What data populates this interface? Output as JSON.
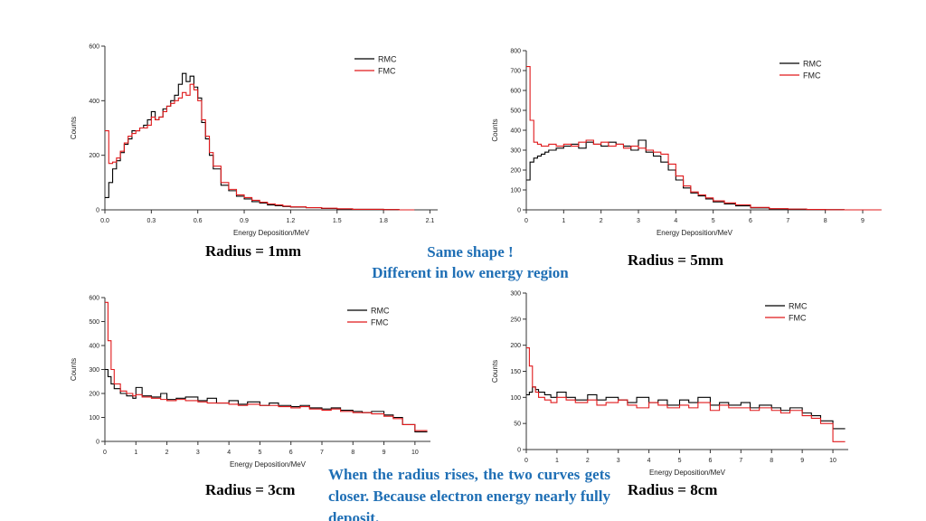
{
  "colors": {
    "rmc": "#000000",
    "fmc": "#e0191b",
    "note": "#1f6fb5"
  },
  "labels": {
    "radius_1mm": "Radius = 1mm",
    "radius_5mm": "Radius = 5mm",
    "radius_3cm": "Radius = 3cm",
    "radius_8cm": "Radius = 8cm"
  },
  "notes": {
    "same_shape_line1": "Same shape !",
    "same_shape_line2": "Different in low energy region",
    "closer": "When the radius rises, the two curves gets closer. Because electron energy nearly fully deposit."
  },
  "chart_data": [
    {
      "type": "line",
      "step": true,
      "xlabel": "Energy Deposition/MeV",
      "ylabel": "Counts",
      "xlim": [
        0,
        2.15
      ],
      "ylim": [
        0,
        600
      ],
      "xticks": [
        0.0,
        0.3,
        0.6,
        0.9,
        1.2,
        1.5,
        1.8,
        2.1
      ],
      "xtick_labels": [
        "0.0",
        "0.3",
        "0.6",
        "0.9",
        "1.2",
        "1.5",
        "1.8",
        "2.1"
      ],
      "yticks": [
        0,
        200,
        400,
        600
      ],
      "ytick_labels": [
        "0",
        "200",
        "400",
        "600"
      ],
      "legend_position": "top-right",
      "x": [
        0.0,
        0.025,
        0.05,
        0.075,
        0.1,
        0.125,
        0.15,
        0.175,
        0.2,
        0.225,
        0.25,
        0.275,
        0.3,
        0.325,
        0.35,
        0.375,
        0.4,
        0.425,
        0.45,
        0.475,
        0.5,
        0.525,
        0.55,
        0.575,
        0.6,
        0.625,
        0.65,
        0.675,
        0.7,
        0.75,
        0.8,
        0.85,
        0.9,
        0.95,
        1.0,
        1.05,
        1.1,
        1.15,
        1.2,
        1.3,
        1.4,
        1.5,
        1.6,
        1.7,
        1.8,
        1.9
      ],
      "series": [
        {
          "name": "RMC",
          "color": "#000000",
          "values": [
            45,
            100,
            150,
            180,
            210,
            240,
            260,
            290,
            290,
            300,
            310,
            330,
            360,
            330,
            340,
            370,
            380,
            400,
            420,
            460,
            500,
            470,
            490,
            450,
            410,
            320,
            260,
            200,
            150,
            90,
            70,
            50,
            40,
            30,
            25,
            18,
            15,
            12,
            10,
            8,
            5,
            3,
            2,
            2,
            1,
            0
          ]
        },
        {
          "name": "FMC",
          "color": "#e0191b",
          "values": [
            290,
            170,
            175,
            190,
            215,
            245,
            270,
            280,
            290,
            300,
            300,
            310,
            340,
            330,
            340,
            360,
            380,
            390,
            400,
            410,
            430,
            420,
            460,
            440,
            400,
            330,
            270,
            210,
            160,
            100,
            75,
            55,
            45,
            35,
            28,
            22,
            18,
            14,
            11,
            8,
            6,
            4,
            2,
            2,
            1,
            0
          ]
        }
      ]
    },
    {
      "type": "line",
      "step": true,
      "xlabel": "Energy Deposition/MeV",
      "ylabel": "Counts",
      "xlim": [
        0,
        9
      ],
      "ylim": [
        0,
        800
      ],
      "xticks": [
        0,
        1,
        2,
        3,
        4,
        5,
        6,
        7,
        8,
        9
      ],
      "xtick_labels": [
        "0",
        "1",
        "2",
        "3",
        "4",
        "5",
        "6",
        "7",
        "8",
        "9"
      ],
      "yticks": [
        0,
        100,
        200,
        300,
        400,
        500,
        600,
        700,
        800
      ],
      "ytick_labels": [
        "0",
        "100",
        "200",
        "300",
        "400",
        "500",
        "600",
        "700",
        "800"
      ],
      "legend_position": "top-right",
      "x": [
        0.0,
        0.1,
        0.2,
        0.3,
        0.4,
        0.5,
        0.6,
        0.8,
        1.0,
        1.2,
        1.4,
        1.6,
        1.8,
        2.0,
        2.2,
        2.4,
        2.6,
        2.8,
        3.0,
        3.2,
        3.4,
        3.6,
        3.8,
        4.0,
        4.2,
        4.4,
        4.6,
        4.8,
        5.0,
        5.3,
        5.6,
        6.0,
        6.5,
        7.0,
        7.5,
        8.0,
        8.5,
        9.0
      ],
      "series": [
        {
          "name": "RMC",
          "color": "#000000",
          "values": [
            150,
            240,
            260,
            270,
            280,
            290,
            300,
            310,
            320,
            330,
            310,
            340,
            330,
            320,
            340,
            330,
            320,
            300,
            350,
            290,
            270,
            240,
            200,
            150,
            110,
            85,
            70,
            55,
            40,
            30,
            20,
            10,
            5,
            3,
            2,
            1,
            0,
            0
          ]
        },
        {
          "name": "FMC",
          "color": "#e0191b",
          "values": [
            720,
            450,
            340,
            330,
            320,
            320,
            330,
            320,
            330,
            320,
            340,
            350,
            330,
            340,
            320,
            330,
            310,
            320,
            310,
            300,
            290,
            280,
            230,
            170,
            120,
            90,
            75,
            60,
            45,
            35,
            25,
            12,
            6,
            4,
            2,
            1,
            0,
            0
          ]
        }
      ]
    },
    {
      "type": "line",
      "step": true,
      "xlabel": "Energy Deposition/MeV",
      "ylabel": "Counts",
      "xlim": [
        0,
        10.5
      ],
      "ylim": [
        0,
        600
      ],
      "xticks": [
        0,
        1,
        2,
        3,
        4,
        5,
        6,
        7,
        8,
        9,
        10
      ],
      "xtick_labels": [
        "0",
        "1",
        "2",
        "3",
        "4",
        "5",
        "6",
        "7",
        "8",
        "9",
        "10"
      ],
      "yticks": [
        0,
        100,
        200,
        300,
        400,
        500,
        600
      ],
      "ytick_labels": [
        "0",
        "100",
        "200",
        "300",
        "400",
        "500",
        "600"
      ],
      "legend_position": "top-right",
      "x": [
        0.0,
        0.1,
        0.2,
        0.3,
        0.5,
        0.7,
        0.9,
        1.0,
        1.2,
        1.5,
        1.8,
        2.0,
        2.3,
        2.6,
        3.0,
        3.3,
        3.6,
        4.0,
        4.3,
        4.6,
        5.0,
        5.3,
        5.6,
        6.0,
        6.3,
        6.6,
        7.0,
        7.3,
        7.6,
        8.0,
        8.3,
        8.6,
        9.0,
        9.3,
        9.6,
        10.0
      ],
      "series": [
        {
          "name": "RMC",
          "color": "#000000",
          "values": [
            300,
            270,
            240,
            220,
            200,
            190,
            180,
            225,
            190,
            185,
            200,
            175,
            180,
            185,
            170,
            180,
            160,
            170,
            155,
            165,
            150,
            160,
            150,
            145,
            150,
            140,
            135,
            140,
            130,
            125,
            120,
            125,
            110,
            100,
            70,
            40
          ]
        },
        {
          "name": "FMC",
          "color": "#e0191b",
          "values": [
            580,
            420,
            300,
            240,
            210,
            200,
            190,
            195,
            185,
            180,
            175,
            170,
            175,
            170,
            165,
            160,
            160,
            155,
            150,
            155,
            150,
            150,
            145,
            140,
            145,
            135,
            130,
            135,
            125,
            120,
            120,
            115,
            105,
            95,
            70,
            45
          ]
        }
      ]
    },
    {
      "type": "line",
      "step": true,
      "xlabel": "Energy Deposition/MeV",
      "ylabel": "Counts",
      "xlim": [
        0,
        10.5
      ],
      "ylim": [
        0,
        300
      ],
      "xticks": [
        0,
        1,
        2,
        3,
        4,
        5,
        6,
        7,
        8,
        9,
        10
      ],
      "xtick_labels": [
        "0",
        "1",
        "2",
        "3",
        "4",
        "5",
        "6",
        "7",
        "8",
        "9",
        "10"
      ],
      "yticks": [
        0,
        50,
        100,
        150,
        200,
        250,
        300
      ],
      "ytick_labels": [
        "0",
        "50",
        "100",
        "150",
        "200",
        "250",
        "300"
      ],
      "legend_position": "top-right",
      "x": [
        0.0,
        0.1,
        0.2,
        0.3,
        0.4,
        0.6,
        0.8,
        1.0,
        1.3,
        1.6,
        2.0,
        2.3,
        2.6,
        3.0,
        3.3,
        3.6,
        4.0,
        4.3,
        4.6,
        5.0,
        5.3,
        5.6,
        6.0,
        6.3,
        6.6,
        7.0,
        7.3,
        7.6,
        8.0,
        8.3,
        8.6,
        9.0,
        9.3,
        9.6,
        10.0
      ],
      "series": [
        {
          "name": "RMC",
          "color": "#000000",
          "values": [
            105,
            110,
            120,
            115,
            110,
            105,
            100,
            110,
            100,
            95,
            105,
            95,
            100,
            95,
            90,
            100,
            90,
            95,
            85,
            95,
            90,
            100,
            85,
            90,
            85,
            90,
            80,
            85,
            80,
            75,
            80,
            70,
            65,
            55,
            40
          ]
        },
        {
          "name": "FMC",
          "color": "#e0191b",
          "values": [
            195,
            160,
            120,
            110,
            100,
            95,
            90,
            100,
            95,
            90,
            95,
            85,
            90,
            95,
            85,
            80,
            90,
            85,
            80,
            85,
            80,
            90,
            75,
            85,
            80,
            80,
            75,
            80,
            75,
            70,
            75,
            65,
            60,
            50,
            15
          ]
        }
      ]
    }
  ]
}
